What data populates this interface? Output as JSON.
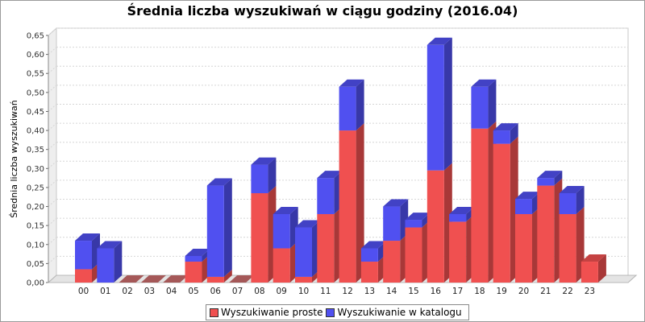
{
  "chart_data": {
    "type": "bar",
    "title": "Średnia liczba wyszukiwań w ciągu godziny (2016.04)",
    "ylabel": "Średnia liczba wyszukiwań",
    "xlabel": "",
    "ylim": [
      0,
      0.65
    ],
    "stacked": true,
    "three_d": true,
    "grid": true,
    "legend_position": "bottom",
    "categories": [
      "00",
      "01",
      "02",
      "03",
      "04",
      "05",
      "06",
      "07",
      "08",
      "09",
      "10",
      "11",
      "12",
      "13",
      "14",
      "15",
      "16",
      "17",
      "18",
      "19",
      "20",
      "21",
      "22",
      "23"
    ],
    "y_ticks": [
      "0,00",
      "0,05",
      "0,10",
      "0,15",
      "0,20",
      "0,25",
      "0,30",
      "0,35",
      "0,40",
      "0,45",
      "0,50",
      "0,55",
      "0,60",
      "0,65"
    ],
    "series": [
      {
        "name": "Wyszukiwanie proste",
        "color": "#f05050",
        "values": [
          0.035,
          0.0,
          0.0,
          0.0,
          0.0,
          0.055,
          0.015,
          0.0,
          0.235,
          0.09,
          0.015,
          0.18,
          0.4,
          0.055,
          0.11,
          0.145,
          0.295,
          0.16,
          0.405,
          0.365,
          0.18,
          0.255,
          0.18,
          0.055
        ]
      },
      {
        "name": "Wyszukiwanie w katalogu",
        "color": "#5050f0",
        "values": [
          0.075,
          0.09,
          0.0,
          0.0,
          0.0,
          0.015,
          0.24,
          0.0,
          0.075,
          0.09,
          0.13,
          0.095,
          0.115,
          0.035,
          0.09,
          0.02,
          0.33,
          0.02,
          0.11,
          0.035,
          0.04,
          0.02,
          0.055,
          0.0
        ]
      }
    ]
  }
}
